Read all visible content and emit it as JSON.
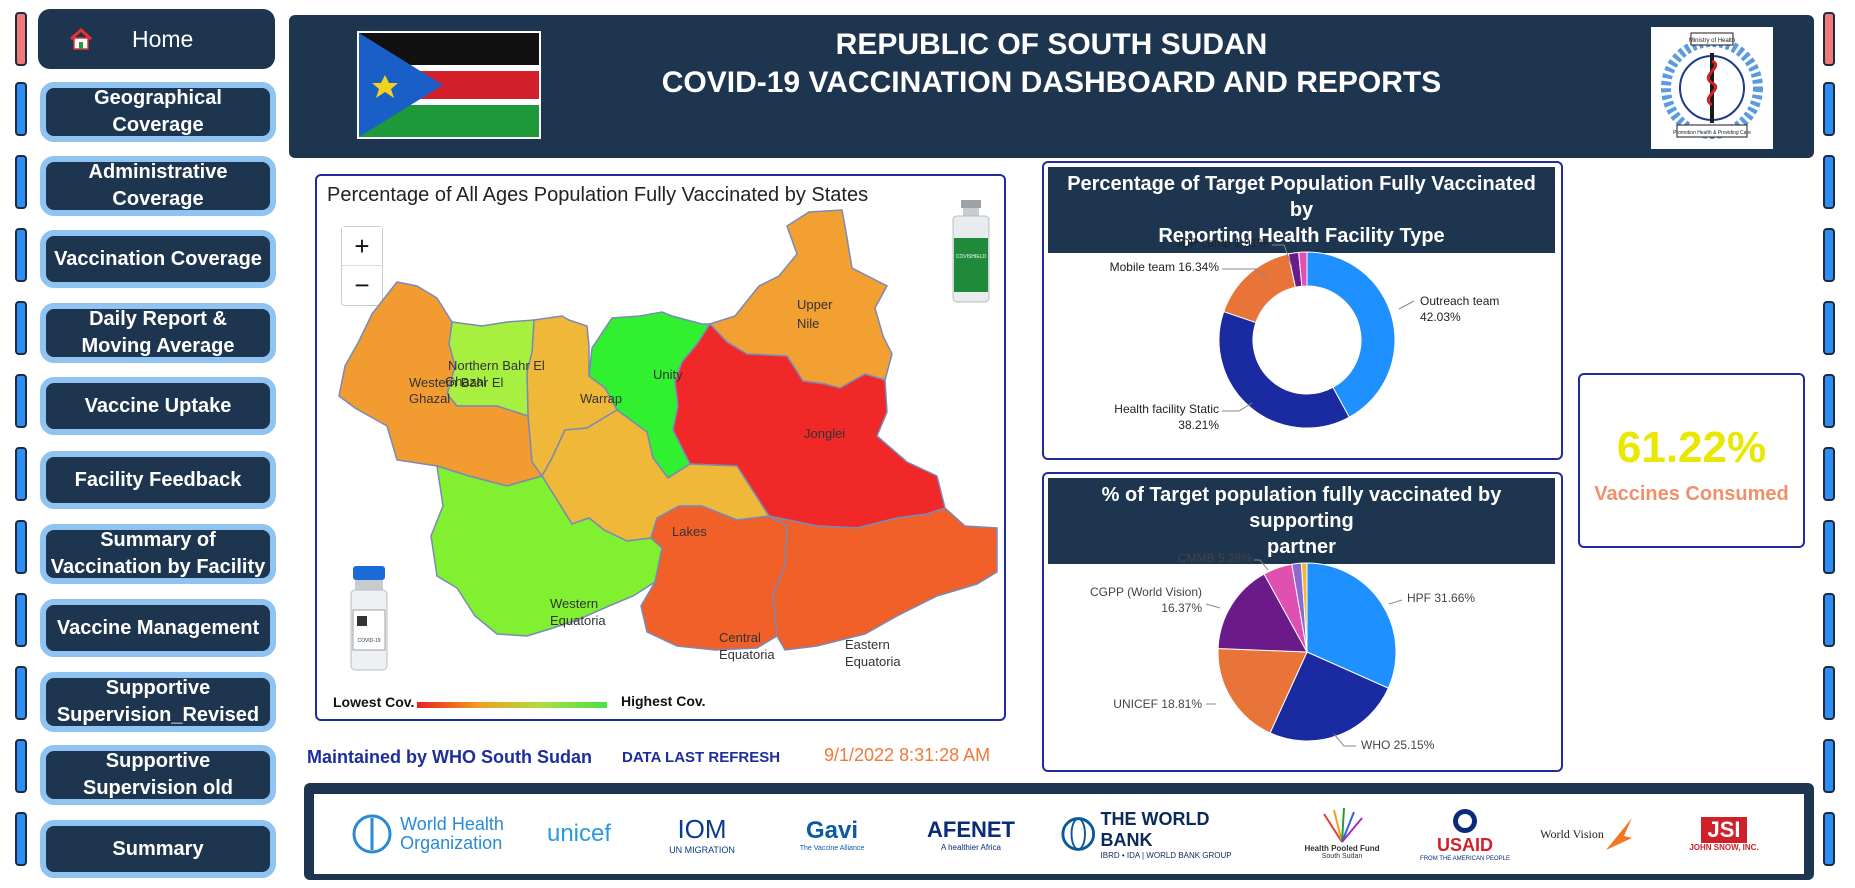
{
  "nav": {
    "home": "Home",
    "items": [
      {
        "line1": "Geographical",
        "line2": "Coverage"
      },
      {
        "line1": "Administrative",
        "line2": "Coverage"
      },
      {
        "line1": "Vaccination Coverage",
        "line2": ""
      },
      {
        "line1": "Daily Report &",
        "line2": "Moving Average"
      },
      {
        "line1": "Vaccine Uptake",
        "line2": ""
      },
      {
        "line1": "Facility Feedback",
        "line2": ""
      },
      {
        "line1": "Summary of",
        "line2": "Vaccination by Facility"
      },
      {
        "line1": "Vaccine Management",
        "line2": ""
      },
      {
        "line1": "Supportive",
        "line2": "Supervision_Revised"
      },
      {
        "line1": "Supportive",
        "line2": "Supervision old"
      },
      {
        "line1": "Summary",
        "line2": ""
      }
    ]
  },
  "header": {
    "title_line1": "REPUBLIC OF SOUTH SUDAN",
    "title_line2": "COVID-19 VACCINATION DASHBOARD AND REPORTS",
    "emblem_top": "Ministry of Health",
    "emblem_bottom": "Promotion Health & Providing Care"
  },
  "map": {
    "title": "Percentage of All Ages Population Fully Vaccinated by States",
    "zoom_in": "+",
    "zoom_out": "−",
    "legend_low": "Lowest Cov.",
    "legend_high": "Highest Cov.",
    "states": {
      "western_bahr": "Western Bahr El",
      "western_bahr_2": "Ghazal",
      "northern_bahr": "Northern Bahr El",
      "northern_bahr_2": "Ghazal",
      "warrap": "Warrap",
      "unity": "Unity",
      "upper_nile": "Upper",
      "upper_nile_2": "Nile",
      "jonglei": "Jonglei",
      "lakes": "Lakes",
      "western_eq": "Western",
      "western_eq_2": "Equatoria",
      "central_eq": "Central",
      "central_eq_2": "Equatoria",
      "eastern_eq": "Eastern",
      "eastern_eq_2": "Equatoria"
    },
    "colors": {
      "western_bahr": "#f29b30",
      "northern_bahr": "#a8f040",
      "warrap": "#f0b838",
      "unity": "#30f030",
      "upper_nile": "#f2a032",
      "jonglei": "#f02828",
      "lakes": "#f0b838",
      "western_eq": "#80f030",
      "central_eq": "#f06028",
      "eastern_eq": "#f06028"
    }
  },
  "chart_data": [
    {
      "type": "pie",
      "title": "Percentage of Target Population Fully Vaccinated by Reporting Health Facility Type",
      "donut": true,
      "slices": [
        {
          "label": "Outreach team",
          "value": 42.03,
          "color": "#1e90ff"
        },
        {
          "label": "Health facility Static",
          "value": 38.21,
          "color": "#1a2aa0"
        },
        {
          "label": "Mobile team",
          "value": 16.34,
          "color": "#e8743a"
        },
        {
          "label": "IDP camp",
          "value": 1.91,
          "color": "#6b1a8a"
        },
        {
          "label": "",
          "value": 1.51,
          "color": "#e050b0"
        }
      ]
    },
    {
      "type": "pie",
      "title": "% of Target population fully vaccinated by supporting partner",
      "donut": false,
      "slices": [
        {
          "label": "HPF",
          "value": 31.66,
          "color": "#1e90ff"
        },
        {
          "label": "WHO",
          "value": 25.15,
          "color": "#1a2aa0"
        },
        {
          "label": "UNICEF",
          "value": 18.81,
          "color": "#e8743a"
        },
        {
          "label": "CGPP (World Vision)",
          "value": 16.37,
          "color": "#6b1a8a"
        },
        {
          "label": "CMMB",
          "value": 5.28,
          "color": "#e050b0"
        },
        {
          "label": "",
          "value": 1.73,
          "color": "#8a6ad0"
        },
        {
          "label": "",
          "value": 1.0,
          "color": "#f0b838"
        }
      ]
    }
  ],
  "pie1_labels": {
    "outreach": "Outreach team",
    "outreach_val": "42.03%",
    "static": "Health facility Static",
    "static_val": "38.21%",
    "mobile": "Mobile team 16.34%",
    "idp": "IDP camp 1.91%"
  },
  "pie2_labels": {
    "hpf": "HPF 31.66%",
    "who": "WHO 25.15%",
    "unicef": "UNICEF 18.81%",
    "cgpp": "CGPP (World Vision)",
    "cgpp_val": "16.37%",
    "cmmb": "CMMB 5.28%"
  },
  "pie1_title_lines": [
    "Percentage of Target Population Fully Vaccinated by",
    "Reporting Health Facility Type"
  ],
  "pie2_title_lines": [
    "% of Target population fully vaccinated by supporting",
    "partner"
  ],
  "kpi": {
    "value": "61.22%",
    "label": "Vaccines Consumed",
    "value_color": "#e8e800",
    "label_color": "#f0906a"
  },
  "status": {
    "maintained": "Maintained by WHO South Sudan",
    "refresh_label": "DATA LAST REFRESH",
    "refresh_time": "9/1/2022 8:31:28 AM"
  },
  "footer_logos": {
    "who_1": "World Health",
    "who_2": "Organization",
    "unicef": "unicef",
    "iom": "IOM",
    "iom_sub": "UN MIGRATION",
    "gavi": "Gavi",
    "gavi_sub": "The Vaccine Alliance",
    "afenet": "AFENET",
    "afenet_sub": "A healthier Africa",
    "worldbank": "THE WORLD BANK",
    "worldbank_sub": "IBRD • IDA | WORLD BANK GROUP",
    "hpf_1": "Health Pooled Fund",
    "hpf_2": "South Sudan",
    "usaid": "USAID",
    "usaid_sub": "FROM THE AMERICAN PEOPLE",
    "worldvision": "World Vision",
    "jsi": "JSI",
    "jsi_sub": "JOHN SNOW, INC."
  },
  "vial_1": "COVISHIELD",
  "vial_2": "COVID-19"
}
